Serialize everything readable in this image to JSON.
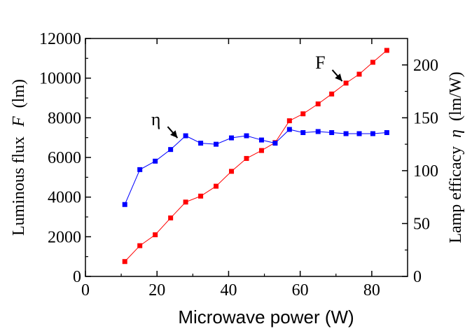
{
  "chart_data": {
    "type": "line",
    "xlabel": "Microwave power (W)",
    "ylabel_left": "Luminous flux",
    "ylabel_left_symbol": "F",
    "ylabel_left_unit": "(lm)",
    "ylabel_right": "Lamp efficacy",
    "ylabel_right_symbol": "η",
    "ylabel_right_unit": "(lm/W)",
    "xlim": [
      0,
      90
    ],
    "ylim_left": [
      0,
      12000
    ],
    "ylim_right": [
      0,
      225
    ],
    "x_ticks": [
      0,
      20,
      40,
      60,
      80
    ],
    "y_left_ticks": [
      0,
      2000,
      4000,
      6000,
      8000,
      10000,
      12000
    ],
    "y_right_ticks": [
      0,
      50,
      100,
      150,
      200
    ],
    "grid": false,
    "series": [
      {
        "name": "F",
        "axis": "left",
        "color": "#ff0000",
        "x": [
          11,
          15.2,
          19.5,
          23.8,
          28,
          32.2,
          36.5,
          40.8,
          45,
          49.2,
          53,
          57,
          60.8,
          65,
          68.8,
          72.8,
          76.5,
          80.3,
          84.2
        ],
        "values": [
          750,
          1550,
          2100,
          2950,
          3750,
          4050,
          4550,
          5300,
          5950,
          6350,
          6750,
          7850,
          8200,
          8700,
          9200,
          9750,
          10200,
          10800,
          11400
        ]
      },
      {
        "name": "η",
        "axis": "right",
        "color": "#0000ff",
        "x": [
          11,
          15.2,
          19.5,
          23.8,
          28,
          32.2,
          36.5,
          40.8,
          45,
          49.2,
          53,
          57,
          60.8,
          65,
          68.8,
          72.8,
          76.5,
          80.3,
          84.2
        ],
        "values": [
          68,
          101,
          109,
          120,
          133,
          126,
          125,
          131,
          133,
          129,
          126,
          139,
          136,
          137,
          136,
          135,
          135,
          135,
          136
        ]
      }
    ],
    "annotations": [
      {
        "text": "η",
        "series": "η",
        "at_x": 26.5
      },
      {
        "text": "F",
        "series": "F",
        "at_x": 72.5
      }
    ]
  }
}
